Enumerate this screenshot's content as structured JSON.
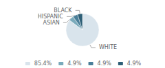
{
  "chart_data": {
    "type": "pie",
    "categories": [
      "WHITE",
      "ASIAN",
      "HISPANIC",
      "BLACK"
    ],
    "values": [
      85.4,
      4.9,
      4.9,
      4.9
    ],
    "value_labels": [
      "85.4%",
      "4.9%",
      "4.9%",
      "4.9%"
    ],
    "colors": [
      "#d9e4ec",
      "#7aaabb",
      "#4a7f99",
      "#2e5f77"
    ],
    "legend": "bottom"
  }
}
